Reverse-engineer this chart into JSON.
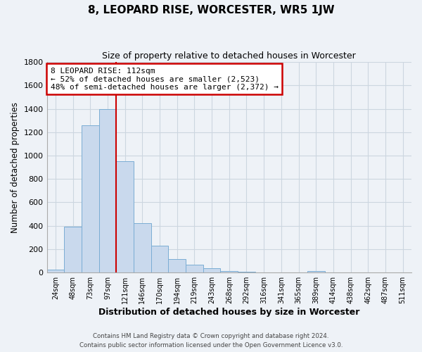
{
  "title": "8, LEOPARD RISE, WORCESTER, WR5 1JW",
  "subtitle": "Size of property relative to detached houses in Worcester",
  "xlabel": "Distribution of detached houses by size in Worcester",
  "ylabel": "Number of detached properties",
  "bar_labels": [
    "24sqm",
    "48sqm",
    "73sqm",
    "97sqm",
    "121sqm",
    "146sqm",
    "170sqm",
    "194sqm",
    "219sqm",
    "243sqm",
    "268sqm",
    "292sqm",
    "316sqm",
    "341sqm",
    "365sqm",
    "389sqm",
    "414sqm",
    "438sqm",
    "462sqm",
    "487sqm",
    "511sqm"
  ],
  "bar_heights": [
    25,
    395,
    1260,
    1395,
    950,
    420,
    230,
    115,
    65,
    40,
    15,
    5,
    2,
    0,
    0,
    15,
    0,
    0,
    0,
    0,
    0
  ],
  "bar_color": "#c9d9ed",
  "bar_edgecolor": "#7aadd4",
  "ylim": [
    0,
    1800
  ],
  "yticks": [
    0,
    200,
    400,
    600,
    800,
    1000,
    1200,
    1400,
    1600,
    1800
  ],
  "marker_label": "8 LEOPARD RISE: 112sqm",
  "annotation_line1": "← 52% of detached houses are smaller (2,523)",
  "annotation_line2": "48% of semi-detached houses are larger (2,372) →",
  "annotation_box_facecolor": "#ffffff",
  "annotation_box_edgecolor": "#cc0000",
  "red_line_color": "#cc0000",
  "grid_color": "#ccd6e0",
  "background_color": "#eef2f7",
  "footer_line1": "Contains HM Land Registry data © Crown copyright and database right 2024.",
  "footer_line2": "Contains public sector information licensed under the Open Government Licence v3.0."
}
